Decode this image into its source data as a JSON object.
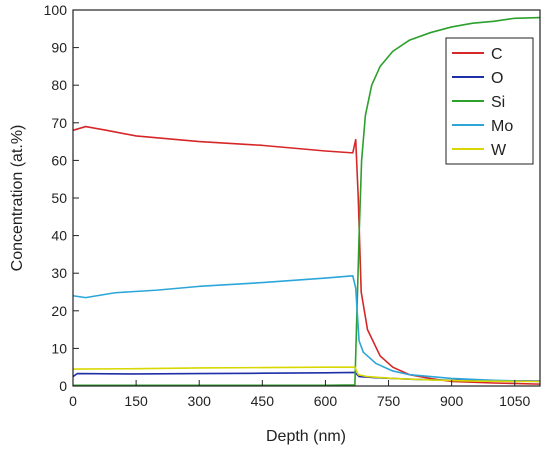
{
  "chart_data": {
    "type": "line",
    "title": "",
    "xlabel": "Depth (nm)",
    "ylabel": "Concentration (at.%)",
    "xlim": [
      0,
      1110
    ],
    "ylim": [
      0,
      100
    ],
    "x_ticks": [
      0,
      150,
      300,
      450,
      600,
      750,
      900,
      1050
    ],
    "y_ticks": [
      0,
      10,
      20,
      30,
      40,
      50,
      60,
      70,
      80,
      90,
      100
    ],
    "grid": false,
    "legend_position": "top-right",
    "series": [
      {
        "name": "C",
        "color": "#d62728",
        "points": [
          [
            0,
            68
          ],
          [
            30,
            69
          ],
          [
            80,
            68
          ],
          [
            150,
            66.5
          ],
          [
            300,
            65
          ],
          [
            450,
            64
          ],
          [
            600,
            62.5
          ],
          [
            665,
            62
          ],
          [
            672,
            65.5
          ],
          [
            678,
            50
          ],
          [
            685,
            25
          ],
          [
            700,
            15
          ],
          [
            730,
            8
          ],
          [
            760,
            5
          ],
          [
            800,
            3
          ],
          [
            850,
            2
          ],
          [
            900,
            1.2
          ],
          [
            1000,
            0.8
          ],
          [
            1110,
            0.5
          ]
        ]
      },
      {
        "name": "O",
        "color": "#1f2fa8",
        "points": [
          [
            0,
            2.5
          ],
          [
            10,
            3.3
          ],
          [
            150,
            3.2
          ],
          [
            300,
            3.3
          ],
          [
            450,
            3.4
          ],
          [
            600,
            3.5
          ],
          [
            670,
            3.6
          ],
          [
            680,
            2.5
          ],
          [
            720,
            2.2
          ],
          [
            800,
            1.8
          ],
          [
            900,
            1.5
          ],
          [
            1000,
            1.4
          ],
          [
            1110,
            1.3
          ]
        ]
      },
      {
        "name": "Si",
        "color": "#2ca02c",
        "points": [
          [
            0,
            0.2
          ],
          [
            600,
            0.2
          ],
          [
            670,
            0.3
          ],
          [
            680,
            40
          ],
          [
            686,
            60
          ],
          [
            695,
            72
          ],
          [
            710,
            80
          ],
          [
            730,
            85
          ],
          [
            760,
            89
          ],
          [
            800,
            92
          ],
          [
            850,
            94
          ],
          [
            900,
            95.5
          ],
          [
            950,
            96.5
          ],
          [
            1000,
            97
          ],
          [
            1050,
            97.8
          ],
          [
            1110,
            98
          ]
        ]
      },
      {
        "name": "Mo",
        "color": "#2ca6d9",
        "points": [
          [
            0,
            24
          ],
          [
            30,
            23.5
          ],
          [
            100,
            24.8
          ],
          [
            200,
            25.5
          ],
          [
            300,
            26.5
          ],
          [
            450,
            27.5
          ],
          [
            600,
            28.7
          ],
          [
            665,
            29.3
          ],
          [
            672,
            26
          ],
          [
            680,
            12
          ],
          [
            690,
            9
          ],
          [
            720,
            6
          ],
          [
            760,
            4
          ],
          [
            800,
            3
          ],
          [
            900,
            2
          ],
          [
            1000,
            1.5
          ],
          [
            1110,
            1.2
          ]
        ]
      },
      {
        "name": "W",
        "color": "#d8d800",
        "points": [
          [
            0,
            4.5
          ],
          [
            150,
            4.6
          ],
          [
            300,
            4.8
          ],
          [
            450,
            4.9
          ],
          [
            600,
            5
          ],
          [
            670,
            5
          ],
          [
            678,
            3
          ],
          [
            700,
            2.5
          ],
          [
            760,
            2
          ],
          [
            850,
            1.6
          ],
          [
            950,
            1.3
          ],
          [
            1110,
            1.2
          ]
        ]
      }
    ]
  }
}
